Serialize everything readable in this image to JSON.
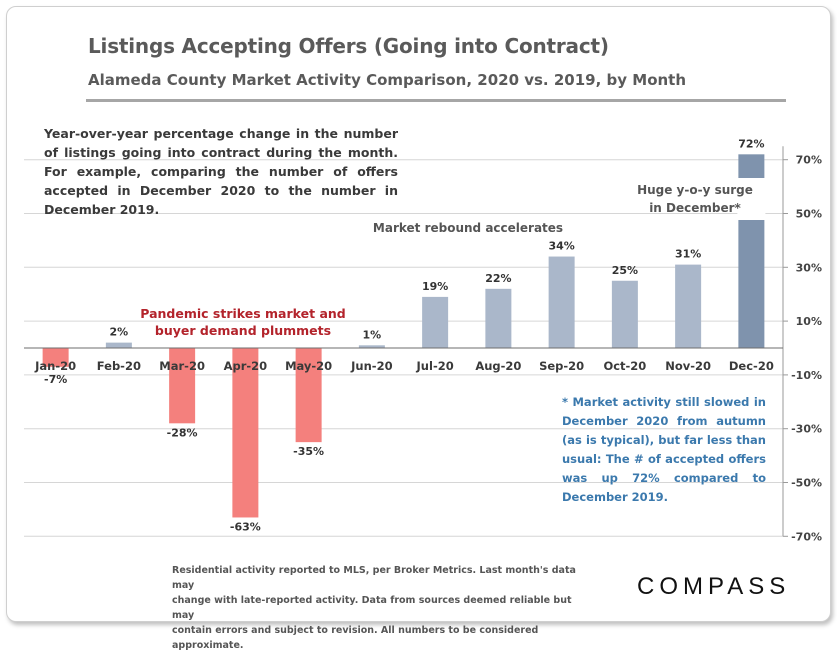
{
  "chart_data": {
    "type": "bar",
    "title": "Listings Accepting Offers (Going into Contract)",
    "subtitle": "Alameda County Market Activity Comparison,  2020 vs. 2019, by Month",
    "description": "Year-over-year percentage change in the number of listings going into contract during the month. For example, comparing the number of offers accepted in December 2020 to the number in December 2019.",
    "categories": [
      "Jan-20",
      "Feb-20",
      "Mar-20",
      "Apr-20",
      "May-20",
      "Jun-20",
      "Jul-20",
      "Aug-20",
      "Sep-20",
      "Oct-20",
      "Nov-20",
      "Dec-20"
    ],
    "values": [
      -7,
      2,
      -28,
      -63,
      -35,
      1,
      19,
      22,
      34,
      25,
      31,
      72
    ],
    "data_labels": [
      "-7%",
      "2%",
      "-28%",
      "-63%",
      "-35%",
      "1%",
      "19%",
      "22%",
      "34%",
      "25%",
      "31%",
      "72%"
    ],
    "ylim": [
      -70,
      75
    ],
    "yticks": [
      70,
      50,
      30,
      10,
      -10,
      -30,
      -50,
      -70
    ],
    "ytick_labels": [
      "70%",
      "50%",
      "30%",
      "10%",
      "-10%",
      "-30%",
      "-50%",
      "-70%"
    ],
    "y_axis_side": "right",
    "grid": true,
    "annotations": {
      "pandemic": [
        "Pandemic strikes market and",
        "buyer demand plummets"
      ],
      "rebound": "Market rebound accelerates",
      "surge": [
        "Huge y-o-y surge",
        "in December*"
      ]
    },
    "note": "* Market activity still slowed in December 2020 from autumn (as is typical), but far less than usual: The # of accepted offers was up 72% compared to December 2019.",
    "colors": {
      "negative": "#f4807d",
      "positive": "#aab7ca",
      "highlight": "#7f93ad",
      "annotation_red": "#b3232b",
      "note_blue": "#3b79ad"
    }
  },
  "footer": {
    "lines": [
      "Residential activity reported to MLS, per Broker Metrics. Last month's data may",
      "change with late-reported activity. Data from sources deemed reliable but may",
      "contain errors and subject to revision. All numbers to be considered approximate."
    ]
  },
  "brand": {
    "logo_text": "COMPASS"
  }
}
